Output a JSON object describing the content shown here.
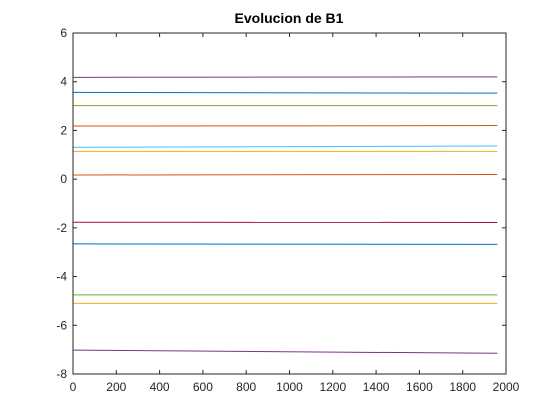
{
  "chart_data": {
    "type": "line",
    "title": "Evolucion de B1",
    "xlabel": "",
    "ylabel": "",
    "xlim": [
      0,
      2000
    ],
    "ylim": [
      -8,
      6
    ],
    "xticks": [
      0,
      200,
      400,
      600,
      800,
      1000,
      1200,
      1400,
      1600,
      1800,
      2000
    ],
    "yticks": [
      6,
      4,
      2,
      0,
      -2,
      -4,
      -6,
      -8
    ],
    "grid": false,
    "series": [
      {
        "x": [
          1,
          1960
        ],
        "y": [
          4.18,
          4.2
        ],
        "color": "#7E2F8E"
      },
      {
        "x": [
          1,
          1960
        ],
        "y": [
          3.56,
          3.53
        ],
        "color": "#0072BD"
      },
      {
        "x": [
          1,
          1960
        ],
        "y": [
          3.02,
          3.02
        ],
        "color": "#77AC30"
      },
      {
        "x": [
          1,
          1960
        ],
        "y": [
          2.18,
          2.2
        ],
        "color": "#D95319"
      },
      {
        "x": [
          1,
          1960
        ],
        "y": [
          1.31,
          1.36
        ],
        "color": "#4DBEEE"
      },
      {
        "x": [
          1,
          1960
        ],
        "y": [
          1.14,
          1.14
        ],
        "color": "#EDB120"
      },
      {
        "x": [
          1,
          1960
        ],
        "y": [
          0.17,
          0.19
        ],
        "color": "#D95319"
      },
      {
        "x": [
          1,
          1960
        ],
        "y": [
          -1.77,
          -1.78
        ],
        "color": "#A2142F"
      },
      {
        "x": [
          1,
          1960
        ],
        "y": [
          -2.66,
          -2.68
        ],
        "color": "#0072BD"
      },
      {
        "x": [
          1,
          1960
        ],
        "y": [
          -4.75,
          -4.75
        ],
        "color": "#77AC30"
      },
      {
        "x": [
          1,
          1960
        ],
        "y": [
          -5.1,
          -5.1
        ],
        "color": "#EDB120"
      },
      {
        "x": [
          1,
          1960
        ],
        "y": [
          -7.02,
          -7.15
        ],
        "color": "#7E2F8E"
      }
    ]
  }
}
